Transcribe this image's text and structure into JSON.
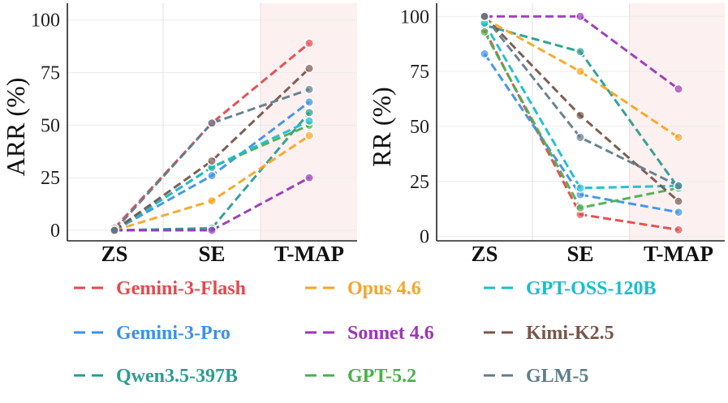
{
  "chart_data": [
    {
      "type": "line",
      "title": "",
      "xlabel": "",
      "ylabel": "ARR (%)",
      "categories": [
        "ZS",
        "SE",
        "T-MAP"
      ],
      "ylim": [
        -5,
        108
      ],
      "yticks": [
        0,
        25,
        50,
        75,
        100
      ],
      "highlight_category": "T-MAP",
      "grid": true,
      "series": [
        {
          "name": "Gemini-3-Flash",
          "color": "#e5484d",
          "values": [
            1,
            51,
            89
          ]
        },
        {
          "name": "Gemini-3-Pro",
          "color": "#3c91e6",
          "values": [
            0,
            26,
            61
          ]
        },
        {
          "name": "Qwen3.5-397B",
          "color": "#2a9d8f",
          "values": [
            0,
            1,
            56
          ]
        },
        {
          "name": "Opus 4.6",
          "color": "#f5a623",
          "values": [
            0,
            14,
            45
          ]
        },
        {
          "name": "Sonnet 4.6",
          "color": "#9b36b7",
          "values": [
            0,
            0,
            25
          ]
        },
        {
          "name": "GPT-5.2",
          "color": "#4caf50",
          "values": [
            0,
            30,
            50
          ]
        },
        {
          "name": "GPT-OSS-120B",
          "color": "#17becf",
          "values": [
            0,
            30,
            52
          ]
        },
        {
          "name": "Kimi-K2.5",
          "color": "#795548",
          "values": [
            0,
            33,
            77
          ]
        },
        {
          "name": "GLM-5",
          "color": "#607d8b",
          "values": [
            0,
            51,
            67
          ]
        }
      ]
    },
    {
      "type": "line",
      "title": "",
      "xlabel": "",
      "ylabel": "RR (%)",
      "categories": [
        "ZS",
        "SE",
        "T-MAP"
      ],
      "ylim": [
        -2,
        106
      ],
      "yticks": [
        0,
        25,
        50,
        75,
        100
      ],
      "highlight_category": "T-MAP",
      "grid": true,
      "series": [
        {
          "name": "Gemini-3-Flash",
          "color": "#e5484d",
          "values": [
            94,
            10,
            3
          ]
        },
        {
          "name": "Gemini-3-Pro",
          "color": "#3c91e6",
          "values": [
            83,
            19,
            11
          ]
        },
        {
          "name": "Qwen3.5-397B",
          "color": "#2a9d8f",
          "values": [
            96,
            84,
            22
          ]
        },
        {
          "name": "Opus 4.6",
          "color": "#f5a623",
          "values": [
            99,
            75,
            45
          ]
        },
        {
          "name": "Sonnet 4.6",
          "color": "#9b36b7",
          "values": [
            100,
            100,
            67
          ]
        },
        {
          "name": "GPT-5.2",
          "color": "#4caf50",
          "values": [
            93,
            13,
            22
          ]
        },
        {
          "name": "GPT-OSS-120B",
          "color": "#17becf",
          "values": [
            97,
            22,
            23
          ]
        },
        {
          "name": "Kimi-K2.5",
          "color": "#795548",
          "values": [
            100,
            55,
            16
          ]
        },
        {
          "name": "GLM-5",
          "color": "#607d8b",
          "values": [
            100,
            45,
            23
          ]
        }
      ]
    }
  ],
  "legend": {
    "position": "bottom",
    "columns": 3,
    "entries": [
      {
        "name": "Gemini-3-Flash",
        "color": "#e5484d"
      },
      {
        "name": "Opus 4.6",
        "color": "#f5a623"
      },
      {
        "name": "GPT-OSS-120B",
        "color": "#17becf"
      },
      {
        "name": "Gemini-3-Pro",
        "color": "#3c91e6"
      },
      {
        "name": "Sonnet 4.6",
        "color": "#9b36b7"
      },
      {
        "name": "Kimi-K2.5",
        "color": "#795548"
      },
      {
        "name": "Qwen3.5-397B",
        "color": "#2a9d8f"
      },
      {
        "name": "GPT-5.2",
        "color": "#4caf50"
      },
      {
        "name": "GLM-5",
        "color": "#607d8b"
      }
    ]
  }
}
